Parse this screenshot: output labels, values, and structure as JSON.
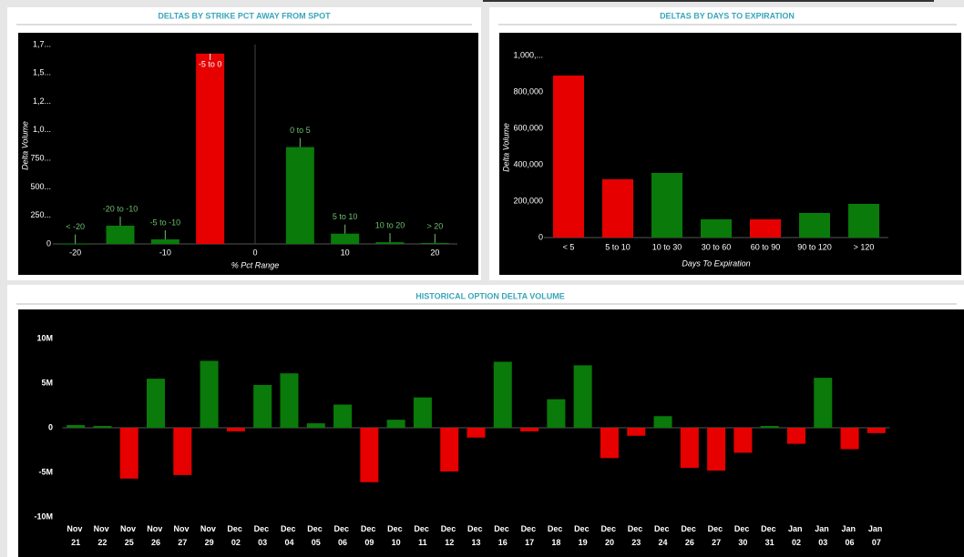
{
  "chart_data": [
    {
      "type": "bar",
      "title": "DELTAS BY STRIKE PCT AWAY FROM SPOT",
      "x_label": "% Pct Range",
      "y_label": "Delta Volume",
      "x": [
        -20,
        -15,
        -10,
        -5,
        5,
        10,
        15,
        20
      ],
      "categories": [
        "< -20",
        "-20 to -10",
        "-5 to -10",
        "-5 to 0",
        "0 to 5",
        "5 to 10",
        "10 to 20",
        "> 20"
      ],
      "values": [
        3,
        160,
        40,
        1670,
        850,
        90,
        15,
        8
      ],
      "colors": [
        "#0a7a0a",
        "#0a7a0a",
        "#0a7a0a",
        "#e60000",
        "#0a7a0a",
        "#0a7a0a",
        "#0a7a0a",
        "#0a7a0a"
      ],
      "xlim": [
        -22.5,
        22.5
      ],
      "xticks": [
        -20,
        -10,
        0,
        10,
        20
      ],
      "ylim": [
        0,
        1830
      ],
      "yticks": [
        0,
        {
          "value": 250,
          "label": "250..."
        },
        {
          "value": 500,
          "label": "500..."
        },
        {
          "value": 750,
          "label": "750..."
        },
        {
          "value": 1000,
          "label": "1,0..."
        },
        {
          "value": 1250,
          "label": "1,2..."
        },
        {
          "value": 1500,
          "label": "1,5..."
        },
        {
          "value": 1750,
          "label": "1,7..."
        }
      ]
    },
    {
      "type": "bar",
      "title": "DELTAS BY DAYS TO EXPIRATION",
      "x_label": "Days To Expiration",
      "y_label": "Delta Volume",
      "categories": [
        "< 5",
        "5 to 10",
        "10 to 30",
        "30 to 60",
        "60 to 90",
        "90 to 120",
        "> 120"
      ],
      "values": [
        890000,
        320000,
        355000,
        100000,
        100000,
        135000,
        185000
      ],
      "colors": [
        "#e60000",
        "#e60000",
        "#0a7a0a",
        "#0a7a0a",
        "#e60000",
        "#0a7a0a",
        "#0a7a0a"
      ],
      "ylim": [
        0,
        1115000
      ],
      "yticks": [
        0,
        {
          "value": 200000,
          "label": "200,000"
        },
        {
          "value": 400000,
          "label": "400,000"
        },
        {
          "value": 600000,
          "label": "600,000"
        },
        {
          "value": 800000,
          "label": "800,000"
        },
        {
          "value": 1000000,
          "label": "1,000,..."
        }
      ]
    },
    {
      "type": "bar",
      "title": "HISTORICAL OPTION DELTA VOLUME",
      "categories": [
        "Nov 21",
        "Nov 22",
        "Nov 25",
        "Nov 26",
        "Nov 27",
        "Nov 29",
        "Dec 02",
        "Dec 03",
        "Dec 04",
        "Dec 05",
        "Dec 06",
        "Dec 09",
        "Dec 10",
        "Dec 11",
        "Dec 12",
        "Dec 13",
        "Dec 16",
        "Dec 17",
        "Dec 18",
        "Dec 19",
        "Dec 20",
        "Dec 23",
        "Dec 24",
        "Dec 26",
        "Dec 27",
        "Dec 30",
        "Dec 31",
        "Jan 02",
        "Jan 03",
        "Jan 06",
        "Jan 07"
      ],
      "values": [
        300000,
        200000,
        -5700000,
        5500000,
        -5300000,
        7500000,
        -400000,
        4800000,
        6100000,
        500000,
        2600000,
        -6100000,
        900000,
        3400000,
        -4900000,
        -1100000,
        7400000,
        -400000,
        3200000,
        7000000,
        -3400000,
        -900000,
        1300000,
        -4500000,
        -4800000,
        -2800000,
        200000,
        -1800000,
        5600000,
        -2400000,
        -600000
      ],
      "positive_color": "#0a7a0a",
      "negative_color": "#e60000",
      "ylim": [
        -14000000,
        12500000
      ],
      "yticks": [
        {
          "value": -10000000,
          "label": "-10M"
        },
        {
          "value": -5000000,
          "label": "-5M"
        },
        0,
        {
          "value": 5000000,
          "label": "5M"
        },
        {
          "value": 10000000,
          "label": "10M"
        }
      ]
    }
  ]
}
